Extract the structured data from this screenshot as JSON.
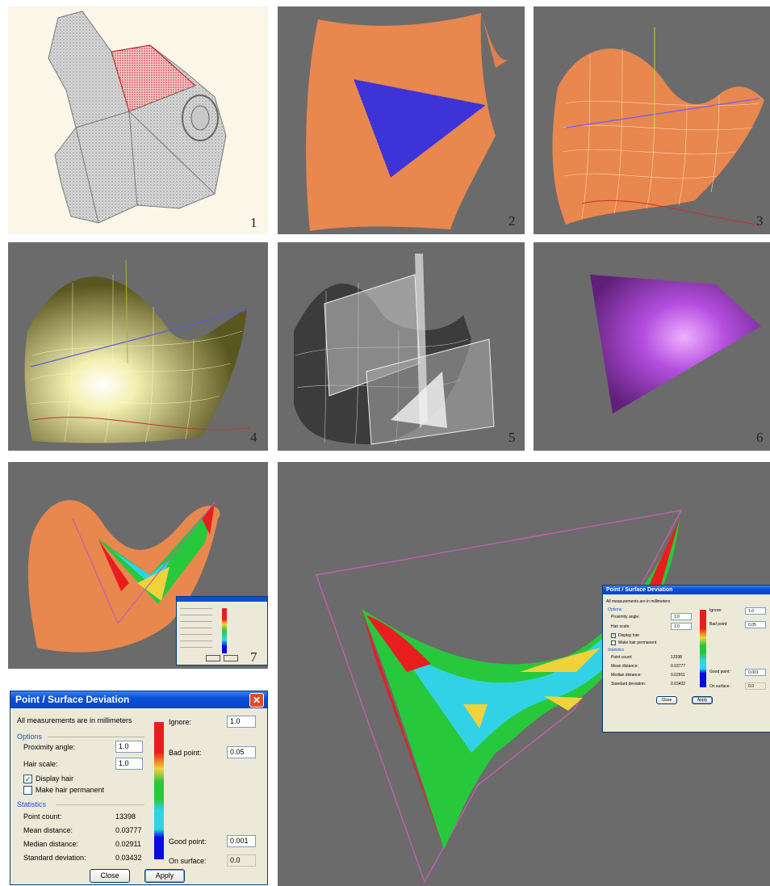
{
  "labels": [
    "1",
    "2",
    "3",
    "4",
    "5",
    "6",
    "7"
  ],
  "dialog": {
    "title": "Point / Surface Deviation",
    "note": "All measurements are in millimeters",
    "options_label": "Options",
    "proximity_label": "Proximity angle:",
    "proximity_value": "1.0",
    "hair_scale_label": "Hair scale:",
    "hair_scale_value": "1.0",
    "display_hair_label": "Display hair",
    "display_hair_checked": true,
    "make_hair_label": "Make hair permanent",
    "make_hair_checked": false,
    "statistics_label": "Statistics",
    "point_count_label": "Point count:",
    "point_count_value": "13398",
    "mean_label": "Mean distance:",
    "mean_value": "0.03777",
    "median_label": "Median distance:",
    "median_value": "0.02911",
    "std_label": "Standard deviation:",
    "std_value": "0.03432",
    "ignore_label": "Ignore:",
    "ignore_value": "1.0",
    "bad_label": "Bad point:",
    "bad_value": "0.05",
    "good_label": "Good point:",
    "good_value": "0.001",
    "surface_label": "On surface:",
    "surface_value": "0.0",
    "close_label": "Close",
    "apply_label": "Apply"
  },
  "colors": {
    "viewport_bg": "#6b6b6b",
    "orange_surface": "#e8874e",
    "blue_points": "#2a2ae6",
    "yellow_surface": "#e4e19a",
    "purple_surface": "#b44fe0",
    "deviation_red": "#e81e1e",
    "deviation_green": "#28c83c",
    "deviation_cyan": "#32d2e6",
    "deviation_yellow": "#f0d23c"
  }
}
